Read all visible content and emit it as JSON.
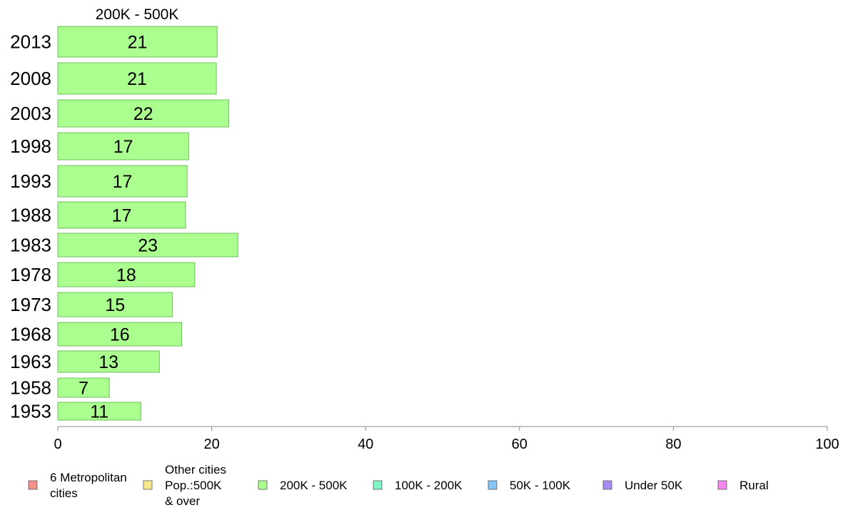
{
  "chart_data": {
    "type": "bar",
    "orientation": "horizontal",
    "title": "200K - 500K",
    "categories": [
      "2013",
      "2008",
      "2003",
      "1998",
      "1993",
      "1988",
      "1983",
      "1978",
      "1973",
      "1968",
      "1963",
      "1958",
      "1953"
    ],
    "series": [
      {
        "values": [
          20.7,
          20.6,
          22.2,
          17.0,
          16.8,
          16.6,
          23.4,
          17.8,
          14.9,
          16.1,
          13.2,
          6.7,
          10.8
        ],
        "data_labels": [
          "21",
          "21",
          "22",
          "17",
          "17",
          "17",
          "23",
          "18",
          "15",
          "16",
          "13",
          "7",
          "11"
        ],
        "color": "#aaff8f"
      }
    ],
    "xlim": [
      0,
      100
    ],
    "x_ticks": [
      "0",
      "20",
      "40",
      "60",
      "80",
      "100"
    ],
    "grid": false,
    "legend_position": "bottom",
    "legend": [
      {
        "label": [
          "6 Metropolitan",
          " cities"
        ],
        "color": "#f4918c"
      },
      {
        "label": [
          "Other cities",
          "Pop.:500K",
          " & over"
        ],
        "color": "#f7e98a"
      },
      {
        "label": [
          "200K - 500K"
        ],
        "color": "#aaff8f"
      },
      {
        "label": [
          "100K - 200K"
        ],
        "color": "#7ff7c4"
      },
      {
        "label": [
          "50K - 100K"
        ],
        "color": "#86c5f7"
      },
      {
        "label": [
          "Under 50K"
        ],
        "color": "#a98af5"
      },
      {
        "label": [
          "Rural"
        ],
        "color": "#f58af0"
      }
    ]
  }
}
